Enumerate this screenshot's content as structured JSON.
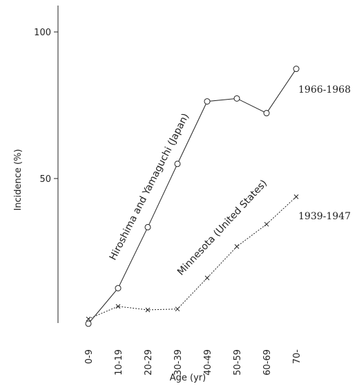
{
  "chart_data": {
    "type": "line",
    "x_label": "Age (yr)",
    "y_label": "Incidence (%)",
    "categories": [
      "0-9",
      "10-19",
      "20-29",
      "30-39",
      "40-49",
      "50-59",
      "60-69",
      "70-"
    ],
    "ylim": [
      0,
      109
    ],
    "yticks": [
      50,
      100
    ],
    "series": [
      {
        "name": "Hiroshima and Yamaguchi (Japan)",
        "period": "1966-1968",
        "color": "#222222",
        "marker": "circle",
        "dash": "solid",
        "values": [
          0.5,
          12.6,
          33.4,
          55,
          76.3,
          77.3,
          72.3,
          87.4
        ]
      },
      {
        "name": "Minnesota (United States)",
        "period": "1939-1947",
        "color": "#222222",
        "marker": "x",
        "dash": "dotted",
        "values": [
          2.1,
          6.4,
          5.2,
          5.5,
          16.1,
          26.8,
          34.4,
          43.8
        ]
      }
    ]
  }
}
